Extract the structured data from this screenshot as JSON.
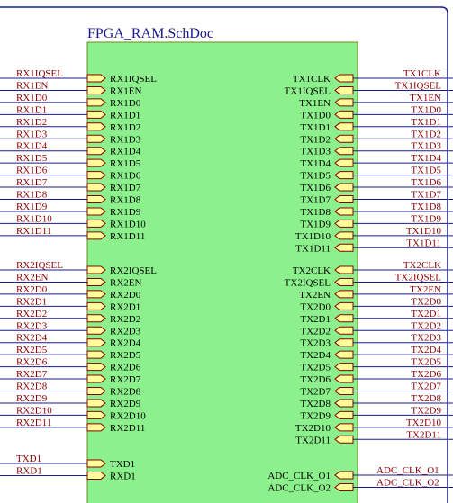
{
  "title": "FPGA_RAM.SchDoc",
  "left_groups": [
    {
      "pins": [
        {
          "net": "RX1IQSEL",
          "name": "RX1IQSEL"
        },
        {
          "net": "RX1EN",
          "name": "RX1EN"
        },
        {
          "net": "RX1D0",
          "name": "RX1D0"
        },
        {
          "net": "RX1D1",
          "name": "RX1D1"
        },
        {
          "net": "RX1D2",
          "name": "RX1D2"
        },
        {
          "net": "RX1D3",
          "name": "RX1D3"
        },
        {
          "net": "RX1D4",
          "name": "RX1D4"
        },
        {
          "net": "RX1D5",
          "name": "RX1D5"
        },
        {
          "net": "RX1D6",
          "name": "RX1D6"
        },
        {
          "net": "RX1D7",
          "name": "RX1D7"
        },
        {
          "net": "RX1D8",
          "name": "RX1D8"
        },
        {
          "net": "RX1D9",
          "name": "RX1D9"
        },
        {
          "net": "RX1D10",
          "name": "RX1D10"
        },
        {
          "net": "RX1D11",
          "name": "RX1D11"
        }
      ]
    },
    {
      "pins": [
        {
          "net": "RX2IQSEL",
          "name": "RX2IQSEL"
        },
        {
          "net": "RX2EN",
          "name": "RX2EN"
        },
        {
          "net": "RX2D0",
          "name": "RX2D0"
        },
        {
          "net": "RX2D1",
          "name": "RX2D1"
        },
        {
          "net": "RX2D2",
          "name": "RX2D2"
        },
        {
          "net": "RX2D3",
          "name": "RX2D3"
        },
        {
          "net": "RX2D4",
          "name": "RX2D4"
        },
        {
          "net": "RX2D5",
          "name": "RX2D5"
        },
        {
          "net": "RX2D6",
          "name": "RX2D6"
        },
        {
          "net": "RX2D7",
          "name": "RX2D7"
        },
        {
          "net": "RX2D8",
          "name": "RX2D8"
        },
        {
          "net": "RX2D9",
          "name": "RX2D9"
        },
        {
          "net": "RX2D10",
          "name": "RX2D10"
        },
        {
          "net": "RX2D11",
          "name": "RX2D11"
        }
      ]
    },
    {
      "pins": [
        {
          "net": "TXD1",
          "name": "TXD1"
        },
        {
          "net": "RXD1",
          "name": "RXD1"
        }
      ]
    }
  ],
  "right_groups": [
    {
      "pins": [
        {
          "net": "TX1CLK",
          "name": "TX1CLK"
        },
        {
          "net": "TX1IQSEL",
          "name": "TX1IQSEL"
        },
        {
          "net": "TX1EN",
          "name": "TX1EN"
        },
        {
          "net": "TX1D0",
          "name": "TX1D0"
        },
        {
          "net": "TX1D1",
          "name": "TX1D1"
        },
        {
          "net": "TX1D2",
          "name": "TX1D2"
        },
        {
          "net": "TX1D3",
          "name": "TX1D3"
        },
        {
          "net": "TX1D4",
          "name": "TX1D4"
        },
        {
          "net": "TX1D5",
          "name": "TX1D5"
        },
        {
          "net": "TX1D6",
          "name": "TX1D6"
        },
        {
          "net": "TX1D7",
          "name": "TX1D7"
        },
        {
          "net": "TX1D8",
          "name": "TX1D8"
        },
        {
          "net": "TX1D9",
          "name": "TX1D9"
        },
        {
          "net": "TX1D10",
          "name": "TX1D10"
        },
        {
          "net": "TX1D11",
          "name": "TX1D11"
        }
      ]
    },
    {
      "pins": [
        {
          "net": "TX2CLK",
          "name": "TX2CLK"
        },
        {
          "net": "TX2IQSEL",
          "name": "TX2IQSEL"
        },
        {
          "net": "TX2EN",
          "name": "TX2EN"
        },
        {
          "net": "TX2D0",
          "name": "TX2D0"
        },
        {
          "net": "TX2D1",
          "name": "TX2D1"
        },
        {
          "net": "TX2D2",
          "name": "TX2D2"
        },
        {
          "net": "TX2D3",
          "name": "TX2D3"
        },
        {
          "net": "TX2D4",
          "name": "TX2D4"
        },
        {
          "net": "TX2D5",
          "name": "TX2D5"
        },
        {
          "net": "TX2D6",
          "name": "TX2D6"
        },
        {
          "net": "TX2D7",
          "name": "TX2D7"
        },
        {
          "net": "TX2D8",
          "name": "TX2D8"
        },
        {
          "net": "TX2D9",
          "name": "TX2D9"
        },
        {
          "net": "TX2D10",
          "name": "TX2D10"
        },
        {
          "net": "TX2D11",
          "name": "TX2D11"
        }
      ]
    },
    {
      "pins": [
        {
          "net": "ADC_CLK_O1",
          "name": "ADC_CLK_O1"
        },
        {
          "net": "ADC_CLK_O2",
          "name": "ADC_CLK_O2"
        }
      ]
    }
  ]
}
